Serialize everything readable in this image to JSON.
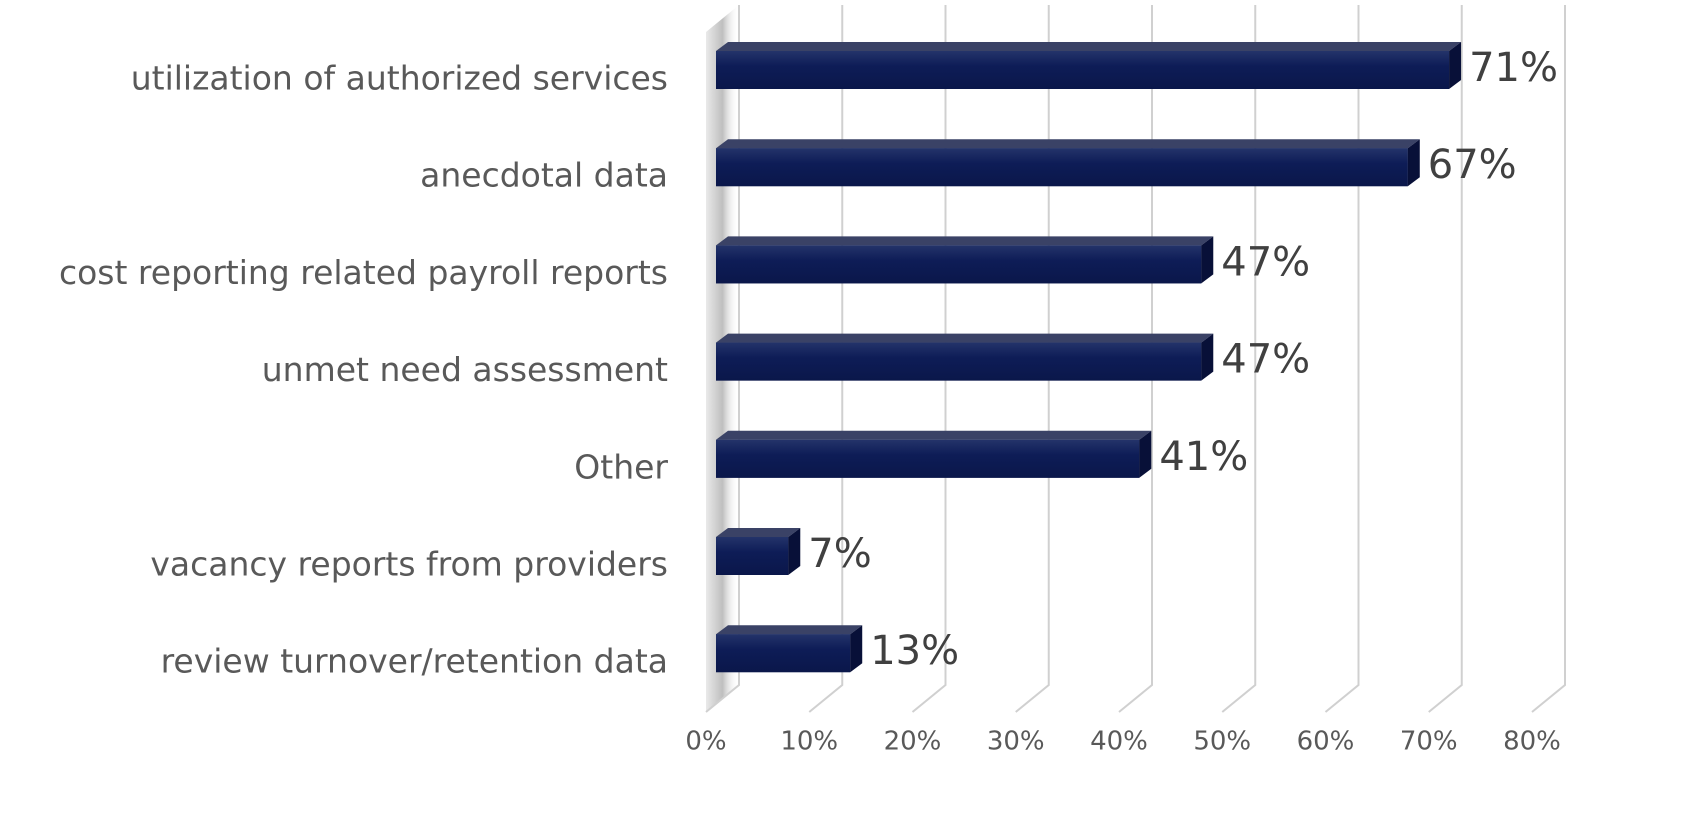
{
  "chart_data": {
    "type": "bar",
    "orientation": "horizontal",
    "categories": [
      "utilization of authorized services",
      "anecdotal data",
      "cost reporting related payroll reports",
      "unmet need assessment",
      "Other",
      "vacancy reports from providers",
      "review turnover/retention data"
    ],
    "values": [
      71,
      67,
      47,
      47,
      41,
      7,
      13
    ],
    "value_labels": [
      "71%",
      "67%",
      "47%",
      "47%",
      "41%",
      "7%",
      "13%"
    ],
    "color": "#0c1a52",
    "xlim": [
      0,
      80
    ],
    "xticks": [
      {
        "value": 0,
        "label": "0%"
      },
      {
        "value": 10,
        "label": "10%"
      },
      {
        "value": 20,
        "label": "20%"
      },
      {
        "value": 30,
        "label": "30%"
      },
      {
        "value": 40,
        "label": "40%"
      },
      {
        "value": 50,
        "label": "50%"
      },
      {
        "value": 60,
        "label": "60%"
      },
      {
        "value": 70,
        "label": "70%"
      },
      {
        "value": 80,
        "label": "80%"
      }
    ],
    "grid": true
  }
}
